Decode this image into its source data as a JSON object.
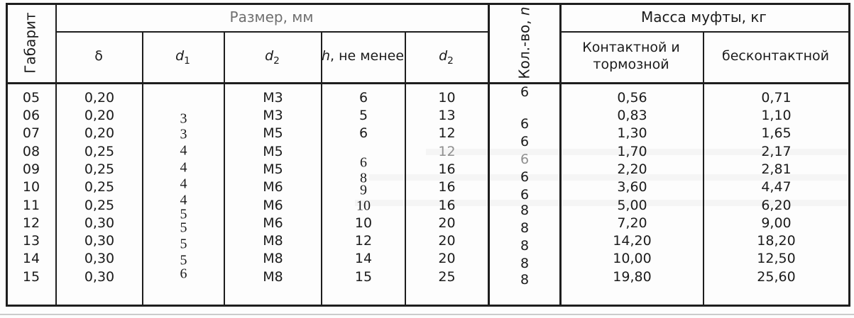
{
  "header": {
    "gabarit": "Габарит",
    "size_group": "Размер, мм",
    "sub_headers": {
      "delta": "δ",
      "d1": {
        "base": "d",
        "sub": "1"
      },
      "d2": {
        "base": "d",
        "sub": "2"
      },
      "h": {
        "italic": "h",
        "rest": ", не менее"
      },
      "d2_right": {
        "base": "d",
        "sub": "2"
      }
    },
    "count": {
      "text": "Кол.-во, ",
      "italic": "n"
    },
    "mass_group": "Масса муфты, кг",
    "mass_contact": "Контактной и тормозной",
    "mass_contactless": "бесконтактной"
  },
  "columns": {
    "gabarit": {
      "values": [
        "05",
        "06",
        "07",
        "08",
        "09",
        "10",
        "11",
        "12",
        "13",
        "14",
        "15"
      ]
    },
    "delta": {
      "values": [
        "0,20",
        "0,20",
        "0,20",
        "0,25",
        "0,25",
        "0,25",
        "0,25",
        "0,30",
        "0,30",
        "0,30",
        "0,30"
      ]
    },
    "d1": {
      "values": [
        "3",
        "3",
        "4",
        "4",
        "4",
        "4",
        "5",
        "5",
        "5",
        "5",
        "6"
      ]
    },
    "d2": {
      "values": [
        "M3",
        "M3",
        "M5",
        "M5",
        "M5",
        "M6",
        "M6",
        "M6",
        "M8",
        "M8",
        "M8"
      ]
    },
    "h": {
      "values": [
        "6",
        "5",
        "6",
        "6",
        "8",
        "9",
        "10",
        "10",
        "12",
        "14",
        "15"
      ]
    },
    "d2b": {
      "values": [
        "10",
        "13",
        "12",
        "12",
        "16",
        "16",
        "16",
        "20",
        "20",
        "20",
        "25"
      ]
    },
    "count": {
      "values": [
        "6",
        "6",
        "6",
        "6",
        "6",
        "6",
        "8",
        "8",
        "8",
        "8",
        "8"
      ]
    },
    "massK": {
      "values": [
        "0,56",
        "0,83",
        "1,30",
        "1,70",
        "2,20",
        "3,60",
        "5,00",
        "7,20",
        "14,20",
        "10,00",
        "19,80"
      ]
    },
    "massB": {
      "values": [
        "0,71",
        "1,10",
        "1,65",
        "2,17",
        "2,81",
        "4,47",
        "6,20",
        "9,00",
        "18,20",
        "12,50",
        "25,60"
      ]
    }
  },
  "colors": {
    "border": "#1e1e1e",
    "header_muted_text": "#6f6f6f",
    "muted_value_text": "#8f8f8f",
    "page_edge_line": "#cbcbcb"
  }
}
